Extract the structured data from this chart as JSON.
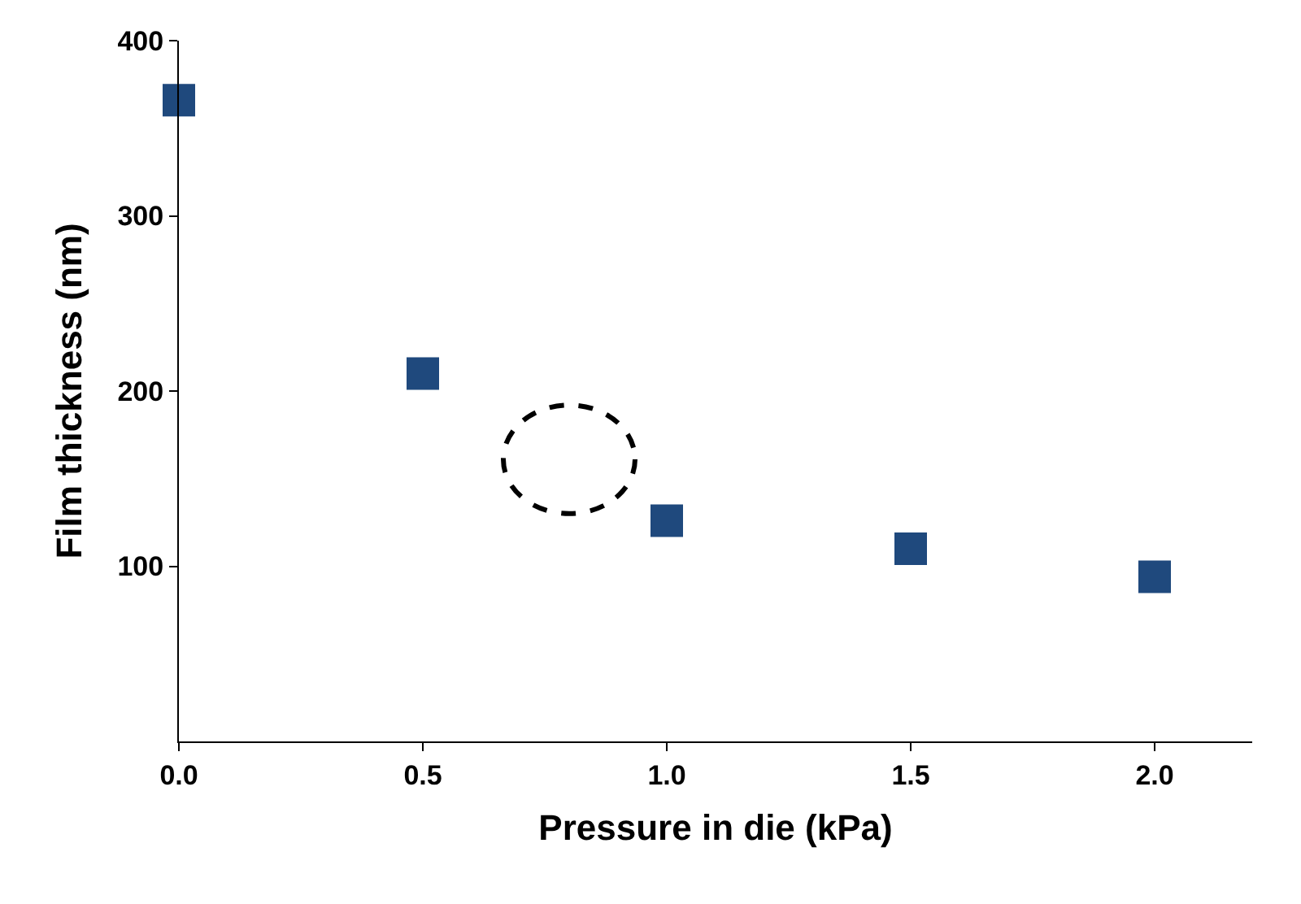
{
  "chart_data": {
    "type": "scatter",
    "xlabel": "Pressure in die (kPa)",
    "ylabel": "Film thickness (nm)",
    "x": [
      0.0,
      0.5,
      1.0,
      1.5,
      2.0
    ],
    "series": [
      {
        "color": "#1f497d",
        "values": [
          366,
          210,
          126,
          110,
          94
        ]
      }
    ],
    "marker": "square",
    "xlim": [
      0,
      2.2
    ],
    "xticks": [
      {
        "value": 0,
        "label": "0.0"
      },
      0.5,
      {
        "value": 1,
        "label": "1.0"
      },
      1.5,
      {
        "value": 2,
        "label": "2.0"
      }
    ],
    "ylim": [
      0,
      400
    ],
    "yticks": [
      100,
      200,
      300,
      400
    ],
    "legend": false
  }
}
